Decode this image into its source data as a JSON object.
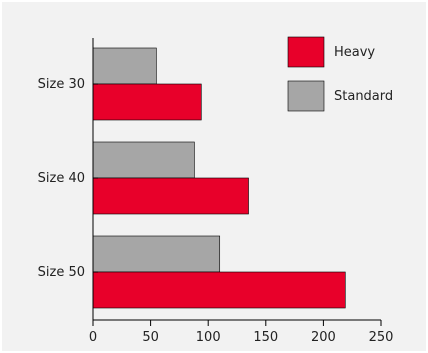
{
  "chart_data": {
    "type": "bar",
    "orientation": "horizontal",
    "categories": [
      "Size 30",
      "Size 40",
      "Size 50"
    ],
    "series": [
      {
        "name": "Heavy",
        "values": [
          94,
          135,
          219
        ],
        "color": "#e8002a"
      },
      {
        "name": "Standard",
        "values": [
          55,
          88,
          110
        ],
        "color": "#a6a6a6"
      }
    ],
    "xlim": [
      0,
      250
    ],
    "xticks": [
      "0",
      "50",
      "100",
      "150",
      "200",
      "250"
    ],
    "grid": false,
    "legend_position": "top-right"
  }
}
